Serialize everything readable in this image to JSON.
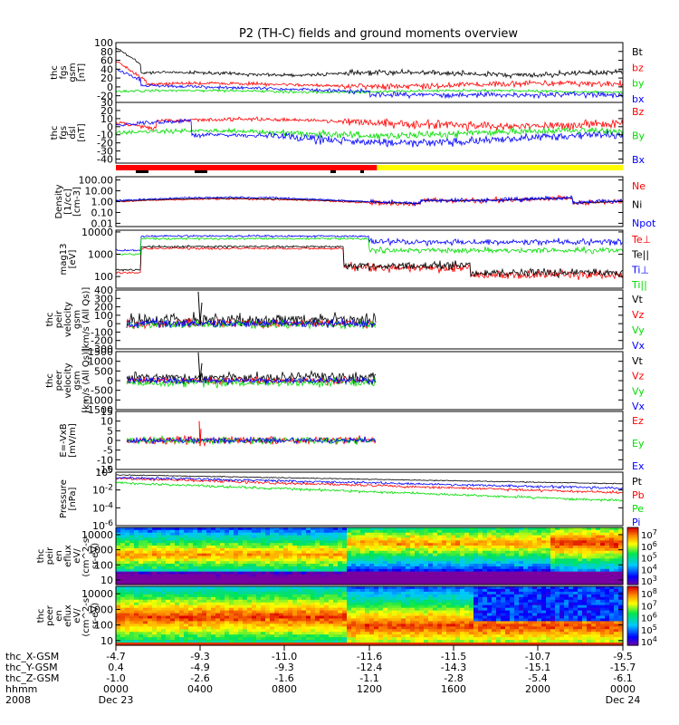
{
  "title": "P2 (TH-C) fields and ground moments overview",
  "colors": {
    "black": "#000000",
    "red": "#ff0000",
    "green": "#00dd00",
    "blue": "#0000ff",
    "yellow": "#ffff00"
  },
  "colorbars": [
    {
      "ticks": [
        "10^7",
        "10^6",
        "10^5",
        "10^4",
        "10^3"
      ]
    },
    {
      "ticks": [
        "10^8",
        "10^7",
        "10^6",
        "10^5",
        "10^4"
      ]
    }
  ],
  "ephemeris": {
    "rows": [
      {
        "label": "thc_X-GSM",
        "values": [
          "-4.7",
          "-9.3",
          "-11.0",
          "-11.6",
          "-11.5",
          "-10.7",
          "-9.5"
        ]
      },
      {
        "label": "thc_Y-GSM",
        "values": [
          "0.4",
          "-4.9",
          "-9.3",
          "-12.4",
          "-14.3",
          "-15.1",
          "-15.7"
        ]
      },
      {
        "label": "thc_Z-GSM",
        "values": [
          "-1.0",
          "-2.6",
          "-1.6",
          "-1.1",
          "-2.8",
          "-5.4",
          "-6.1"
        ]
      },
      {
        "label": "hhmm",
        "values": [
          "0000",
          "0400",
          "0800",
          "1200",
          "1600",
          "2000",
          "0000"
        ]
      },
      {
        "label": "2008",
        "values": [
          "Dec 23",
          "",
          "",
          "",
          "",
          "",
          "Dec 24"
        ]
      }
    ]
  },
  "chart_data": [
    {
      "type": "line",
      "ylabel_lines": [
        "thc",
        "fgs",
        "gsm",
        "[nT]"
      ],
      "ylim": [
        -35,
        100
      ],
      "tick_labels": [
        "100",
        "80",
        "60",
        "40",
        "20",
        "0",
        "-20"
      ],
      "series": [
        {
          "name": "Bt",
          "color": "black"
        },
        {
          "name": "bz",
          "color": "red"
        },
        {
          "name": "by",
          "color": "green"
        },
        {
          "name": "bx",
          "color": "blue"
        }
      ]
    },
    {
      "type": "line",
      "ylabel_lines": [
        "thc",
        "fgs",
        "dsl",
        "[nT]"
      ],
      "ylim": [
        -45,
        30
      ],
      "tick_labels": [
        "30",
        "20",
        "10",
        "0",
        "-10",
        "-20",
        "-30",
        "-40"
      ],
      "series": [
        {
          "name": "Bz",
          "color": "red"
        },
        {
          "name": "By",
          "color": "green"
        },
        {
          "name": "Bx",
          "color": "blue"
        }
      ]
    },
    {
      "type": "line",
      "ylabel_lines": [
        "Density",
        "[1/cc]",
        "[cm-3]"
      ],
      "scale": "log",
      "ylim": [
        0.005,
        200
      ],
      "tick_labels": [
        "100.00",
        "10.00",
        "1.00",
        "0.10",
        "0.01"
      ],
      "series": [
        {
          "name": "Ne",
          "color": "red"
        },
        {
          "name": "Ni",
          "color": "black"
        },
        {
          "name": "Npot",
          "color": "blue"
        }
      ]
    },
    {
      "type": "line",
      "ylabel_lines": [
        "mag13",
        "[eV]"
      ],
      "scale": "log",
      "ylim": [
        30,
        12000
      ],
      "tick_labels": [
        "10000",
        "1000",
        "100"
      ],
      "series": [
        {
          "name": "Te⊥",
          "color": "red"
        },
        {
          "name": "Te||",
          "color": "black"
        },
        {
          "name": "Ti⊥",
          "color": "blue"
        },
        {
          "name": "Ti||",
          "color": "green"
        }
      ]
    },
    {
      "type": "line",
      "ylabel_lines": [
        "thc",
        "peir",
        "velocity",
        "gsm",
        "[km/s (All Qs)]"
      ],
      "ylim": [
        -300,
        400
      ],
      "tick_labels": [
        "400",
        "300",
        "200",
        "100",
        "0",
        "-100",
        "-200",
        "-300"
      ],
      "series": [
        {
          "name": "Vt",
          "color": "black"
        },
        {
          "name": "Vz",
          "color": "red"
        },
        {
          "name": "Vy",
          "color": "green"
        },
        {
          "name": "Vx",
          "color": "blue"
        }
      ]
    },
    {
      "type": "line",
      "ylabel_lines": [
        "thc",
        "peer",
        "velocity",
        "gsm",
        "[km/s (All Qs)]"
      ],
      "ylim": [
        -1500,
        1500
      ],
      "tick_labels": [
        "1500",
        "1000",
        "500",
        "0",
        "-500",
        "-1000",
        "-1500"
      ],
      "series": [
        {
          "name": "Vt",
          "color": "black"
        },
        {
          "name": "Vz",
          "color": "red"
        },
        {
          "name": "Vy",
          "color": "green"
        },
        {
          "name": "Vx",
          "color": "blue"
        }
      ]
    },
    {
      "type": "line",
      "ylabel_lines": [
        "E=-VxB",
        "[mV/m]"
      ],
      "ylim": [
        -15,
        15
      ],
      "tick_labels": [
        "15",
        "10",
        "5",
        "0",
        "-5",
        "-10",
        "-15"
      ],
      "series": [
        {
          "name": "Ez",
          "color": "red"
        },
        {
          "name": "Ey",
          "color": "green"
        },
        {
          "name": "Ex",
          "color": "blue"
        }
      ]
    },
    {
      "type": "line",
      "ylabel_lines": [
        "Pressure",
        "[nPa]"
      ],
      "scale": "log",
      "ylim": [
        1e-06,
        1
      ],
      "tick_labels": [
        "10^0",
        "10^-2",
        "10^-4",
        "10^-6"
      ],
      "series": [
        {
          "name": "Pt",
          "color": "black"
        },
        {
          "name": "Pb",
          "color": "red"
        },
        {
          "name": "Pe",
          "color": "green"
        },
        {
          "name": "Pi",
          "color": "blue"
        }
      ]
    },
    {
      "type": "heatmap",
      "ylabel_lines": [
        "thc",
        "peir",
        "en",
        "eflux",
        "eV/",
        "(cm^2-s-",
        "sr-eV)"
      ],
      "scale": "log",
      "ylim": [
        5,
        30000
      ],
      "tick_labels": [
        "10000",
        "1000",
        "100",
        "10"
      ],
      "series": []
    },
    {
      "type": "heatmap",
      "ylabel_lines": [
        "thc",
        "peer",
        "en",
        "eflux",
        "eV/",
        "(cm^2-s-",
        "sr-eV)"
      ],
      "scale": "log",
      "ylim": [
        5,
        30000
      ],
      "tick_labels": [
        "10000",
        "1000",
        "100",
        "10"
      ],
      "series": []
    }
  ]
}
